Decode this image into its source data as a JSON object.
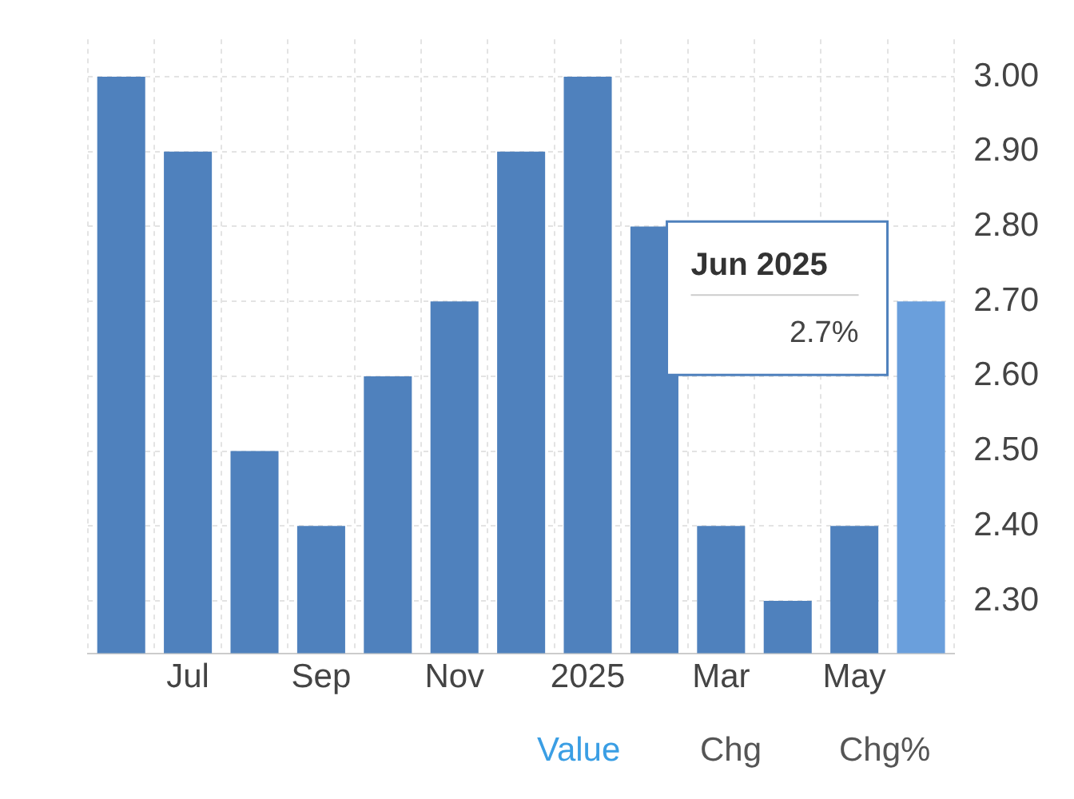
{
  "chart_data": {
    "type": "bar",
    "categories": [
      null,
      "Jul",
      null,
      "Sep",
      null,
      "Nov",
      null,
      "2025",
      null,
      "Mar",
      null,
      "May",
      null
    ],
    "values": [
      3.0,
      2.9,
      2.5,
      2.4,
      2.6,
      2.7,
      2.9,
      3.0,
      2.8,
      2.4,
      2.3,
      2.4,
      2.7
    ],
    "colors": [
      "#4f81bd",
      "#4f81bd",
      "#4f81bd",
      "#4f81bd",
      "#4f81bd",
      "#4f81bd",
      "#4f81bd",
      "#4f81bd",
      "#4f81bd",
      "#4f81bd",
      "#4f81bd",
      "#4f81bd",
      "#6a9fdc"
    ],
    "ylim": [
      2.23,
      3.05
    ],
    "yticks": [
      {
        "value": 2.3,
        "label": "2.30"
      },
      {
        "value": 2.4,
        "label": "2.40"
      },
      {
        "value": 2.5,
        "label": "2.50"
      },
      {
        "value": 2.6,
        "label": "2.60"
      },
      {
        "value": 2.7,
        "label": "2.70"
      },
      {
        "value": 2.8,
        "label": "2.80"
      },
      {
        "value": 2.9,
        "label": "2.90"
      },
      {
        "value": 3.0,
        "label": "3.00"
      }
    ],
    "grid": true,
    "annotations": [
      "Jun 2025",
      "2.7%",
      "Value",
      "Chg",
      "Chg%"
    ]
  }
}
